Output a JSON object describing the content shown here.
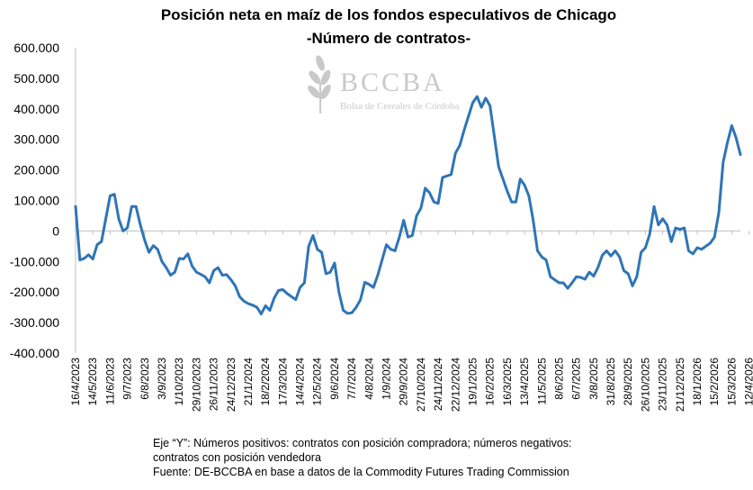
{
  "chart_data": {
    "type": "line",
    "title": "Posición neta en maíz de los fondos  especulativos de Chicago",
    "subtitle": "-Número de contratos-",
    "ylim": [
      -400000,
      600000
    ],
    "yticks": [
      -400000,
      -300000,
      -200000,
      -100000,
      0,
      100000,
      200000,
      300000,
      400000,
      500000,
      600000
    ],
    "ytick_labels": [
      "-400.000",
      "-300.000",
      "-200.000",
      "-100.000",
      "0",
      "100.000",
      "200.000",
      "300.000",
      "400.000",
      "500.000",
      "600.000"
    ],
    "xtick_labels": [
      "16/4/2023",
      "14/5/2023",
      "11/6/2023",
      "9/7/2023",
      "6/8/2023",
      "3/9/2023",
      "1/10/2023",
      "29/10/2023",
      "26/11/2023",
      "24/12/2023",
      "21/1/2024",
      "18/2/2024",
      "17/3/2024",
      "14/4/2024",
      "12/5/2024",
      "9/6/2024",
      "7/7/2024",
      "4/8/2024",
      "1/9/2024",
      "29/9/2024",
      "27/10/2024",
      "24/11/2024",
      "22/12/2024",
      "19/1/2025",
      "16/2/2025",
      "16/3/2025",
      "13/4/2025",
      "11/5/2025",
      "8/6/2025",
      "6/7/2025",
      "3/8/2025",
      "31/8/2025",
      "28/9/2025",
      "26/10/2025",
      "23/11/2025",
      "21/12/2025",
      "18/1/2026",
      "15/2/2026",
      "15/3/2026",
      "12/4/2026"
    ],
    "x_start": "16/4/2023",
    "x_interval_days": 7,
    "grid": false,
    "legend": "none",
    "line_color": "#2E75B6",
    "series": [
      {
        "values": [
          80000,
          -95000,
          -90000,
          -78000,
          -92000,
          -45000,
          -35000,
          40000,
          115000,
          120000,
          40000,
          0,
          10000,
          80000,
          80000,
          20000,
          -30000,
          -70000,
          -48000,
          -60000,
          -100000,
          -120000,
          -145000,
          -135000,
          -90000,
          -92000,
          -75000,
          -115000,
          -135000,
          -142000,
          -150000,
          -170000,
          -130000,
          -120000,
          -145000,
          -143000,
          -160000,
          -180000,
          -215000,
          -230000,
          -238000,
          -243000,
          -250000,
          -272000,
          -245000,
          -260000,
          -220000,
          -195000,
          -192000,
          -205000,
          -215000,
          -225000,
          -185000,
          -170000,
          -50000,
          -15000,
          -60000,
          -70000,
          -140000,
          -135000,
          -105000,
          -200000,
          -260000,
          -270000,
          -268000,
          -250000,
          -225000,
          -168000,
          -175000,
          -185000,
          -145000,
          -95000,
          -45000,
          -60000,
          -65000,
          -20000,
          35000,
          -20000,
          -15000,
          50000,
          75000,
          140000,
          125000,
          95000,
          90000,
          175000,
          180000,
          185000,
          255000,
          280000,
          330000,
          375000,
          420000,
          440000,
          405000,
          435000,
          410000,
          310000,
          210000,
          170000,
          130000,
          95000,
          95000,
          170000,
          150000,
          115000,
          35000,
          -65000,
          -85000,
          -95000,
          -150000,
          -160000,
          -170000,
          -170000,
          -188000,
          -170000,
          -150000,
          -152000,
          -158000,
          -135000,
          -148000,
          -120000,
          -80000,
          -65000,
          -82000,
          -65000,
          -85000,
          -130000,
          -140000,
          -180000,
          -150000,
          -70000,
          -55000,
          -10000,
          80000,
          20000,
          40000,
          20000,
          -35000,
          10000,
          5000,
          10000,
          -65000,
          -75000,
          -55000,
          -60000,
          -50000,
          -40000,
          -20000,
          60000,
          225000,
          290000,
          345000,
          305000,
          250000
        ]
      }
    ],
    "watermark": {
      "name": "BCCBA",
      "subtitle": "Bolsa de Cereales de Córdoba"
    }
  },
  "footnote": {
    "line1": "Eje “Y”: Números positivos: contratos con posición compradora; números negativos: contratos con posición vendedora",
    "line2": "Fuente: DE-BCCBA en base a datos de la Commodity Futures Trading Commission"
  }
}
